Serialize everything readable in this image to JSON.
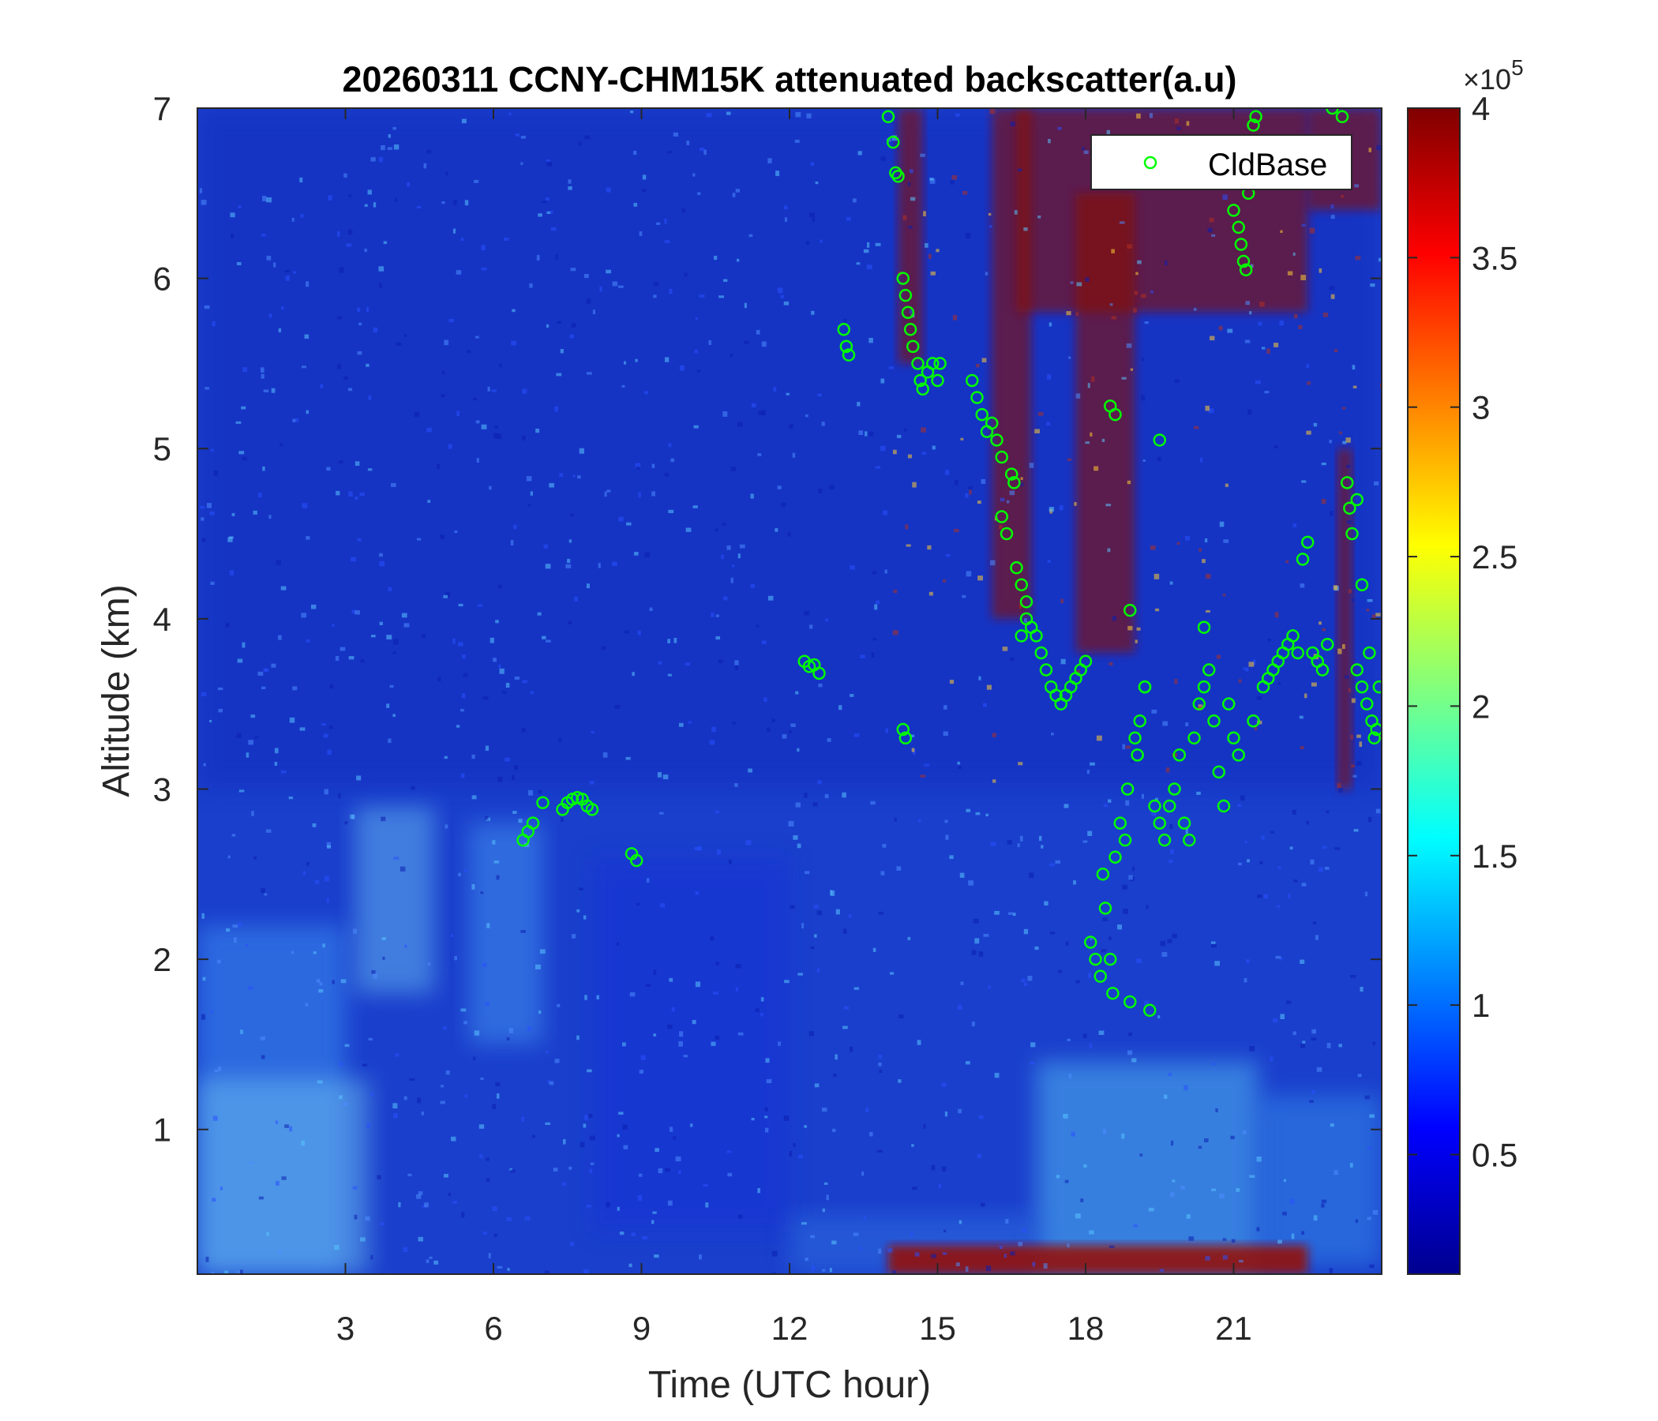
{
  "chart_data": {
    "type": "heatmap",
    "title": "20260311 CCNY-CHM15K attenuated backscatter(a.u)",
    "xlabel": "Time (UTC hour)",
    "ylabel": "Altitude (km)",
    "xlim": [
      0,
      24
    ],
    "ylim": [
      0.15,
      7
    ],
    "xticks": [
      3,
      6,
      9,
      12,
      15,
      18,
      21
    ],
    "yticks": [
      1,
      2,
      3,
      4,
      5,
      6,
      7
    ],
    "colorbar": {
      "colormap": "jet",
      "clim": [
        0.1,
        4
      ],
      "ticks": [
        0.5,
        1,
        1.5,
        2,
        2.5,
        3,
        3.5,
        4
      ],
      "tick_labels": [
        "0.5",
        "1",
        "1.5",
        "2",
        "2.5",
        "3",
        "3.5",
        "4"
      ],
      "exponent_label": "×10",
      "exponent_power": "5"
    },
    "legend": {
      "placement": "top-right",
      "entries": [
        {
          "name": "CldBase",
          "marker": "circle",
          "color": "#00ff00"
        }
      ]
    },
    "cloud_base_series": {
      "name": "CldBase",
      "points": [
        [
          6.6,
          2.7
        ],
        [
          6.7,
          2.75
        ],
        [
          6.8,
          2.8
        ],
        [
          7.0,
          2.92
        ],
        [
          7.4,
          2.88
        ],
        [
          7.5,
          2.92
        ],
        [
          7.6,
          2.94
        ],
        [
          7.7,
          2.95
        ],
        [
          7.8,
          2.94
        ],
        [
          7.9,
          2.9
        ],
        [
          8.0,
          2.88
        ],
        [
          8.8,
          2.62
        ],
        [
          8.9,
          2.58
        ],
        [
          12.3,
          3.75
        ],
        [
          12.4,
          3.72
        ],
        [
          12.5,
          3.73
        ],
        [
          12.6,
          3.68
        ],
        [
          13.1,
          5.7
        ],
        [
          13.15,
          5.6
        ],
        [
          13.2,
          5.55
        ],
        [
          14.0,
          6.95
        ],
        [
          14.1,
          6.8
        ],
        [
          14.15,
          6.62
        ],
        [
          14.2,
          6.6
        ],
        [
          14.3,
          6.0
        ],
        [
          14.35,
          5.9
        ],
        [
          14.4,
          5.8
        ],
        [
          14.45,
          5.7
        ],
        [
          14.5,
          5.6
        ],
        [
          14.6,
          5.5
        ],
        [
          14.65,
          5.4
        ],
        [
          14.7,
          5.35
        ],
        [
          14.8,
          5.45
        ],
        [
          14.9,
          5.5
        ],
        [
          15.0,
          5.4
        ],
        [
          15.05,
          5.5
        ],
        [
          14.3,
          3.35
        ],
        [
          14.35,
          3.3
        ],
        [
          15.7,
          5.4
        ],
        [
          15.8,
          5.3
        ],
        [
          15.9,
          5.2
        ],
        [
          16.0,
          5.1
        ],
        [
          16.1,
          5.15
        ],
        [
          16.2,
          5.05
        ],
        [
          16.3,
          4.95
        ],
        [
          16.5,
          4.85
        ],
        [
          16.55,
          4.8
        ],
        [
          16.3,
          4.6
        ],
        [
          16.4,
          4.5
        ],
        [
          16.6,
          4.3
        ],
        [
          16.7,
          4.2
        ],
        [
          16.8,
          4.1
        ],
        [
          16.7,
          3.9
        ],
        [
          16.8,
          4.0
        ],
        [
          16.9,
          3.95
        ],
        [
          17.0,
          3.9
        ],
        [
          17.1,
          3.8
        ],
        [
          17.2,
          3.7
        ],
        [
          17.3,
          3.6
        ],
        [
          17.4,
          3.55
        ],
        [
          17.5,
          3.5
        ],
        [
          17.6,
          3.55
        ],
        [
          17.7,
          3.6
        ],
        [
          17.8,
          3.65
        ],
        [
          17.9,
          3.7
        ],
        [
          18.0,
          3.75
        ],
        [
          18.1,
          2.1
        ],
        [
          18.2,
          2.0
        ],
        [
          18.3,
          1.9
        ],
        [
          18.35,
          2.5
        ],
        [
          18.4,
          2.3
        ],
        [
          18.5,
          2.0
        ],
        [
          18.55,
          1.8
        ],
        [
          18.6,
          2.6
        ],
        [
          18.7,
          2.8
        ],
        [
          18.8,
          2.7
        ],
        [
          18.85,
          3.0
        ],
        [
          18.9,
          1.75
        ],
        [
          19.0,
          3.3
        ],
        [
          19.05,
          3.2
        ],
        [
          19.1,
          3.4
        ],
        [
          19.2,
          3.6
        ],
        [
          19.3,
          1.7
        ],
        [
          19.4,
          2.9
        ],
        [
          19.5,
          2.8
        ],
        [
          19.6,
          2.7
        ],
        [
          19.7,
          2.9
        ],
        [
          19.8,
          3.0
        ],
        [
          19.9,
          3.2
        ],
        [
          20.0,
          2.8
        ],
        [
          20.1,
          2.7
        ],
        [
          20.2,
          3.3
        ],
        [
          20.3,
          3.5
        ],
        [
          20.4,
          3.6
        ],
        [
          20.5,
          3.7
        ],
        [
          20.6,
          3.4
        ],
        [
          20.7,
          3.1
        ],
        [
          20.8,
          2.9
        ],
        [
          20.9,
          3.5
        ],
        [
          21.0,
          3.3
        ],
        [
          21.1,
          3.2
        ],
        [
          18.5,
          5.25
        ],
        [
          18.6,
          5.2
        ],
        [
          18.9,
          4.05
        ],
        [
          19.2,
          3.6
        ],
        [
          19.5,
          5.05
        ],
        [
          20.4,
          3.95
        ],
        [
          21.4,
          3.4
        ],
        [
          21.0,
          6.4
        ],
        [
          21.1,
          6.3
        ],
        [
          21.15,
          6.2
        ],
        [
          21.2,
          6.1
        ],
        [
          21.25,
          6.05
        ],
        [
          21.3,
          6.5
        ],
        [
          21.4,
          6.9
        ],
        [
          21.45,
          6.95
        ],
        [
          21.6,
          3.6
        ],
        [
          21.7,
          3.65
        ],
        [
          21.8,
          3.7
        ],
        [
          21.9,
          3.75
        ],
        [
          22.0,
          3.8
        ],
        [
          22.1,
          3.85
        ],
        [
          22.2,
          3.9
        ],
        [
          22.3,
          3.8
        ],
        [
          22.4,
          4.35
        ],
        [
          22.5,
          4.45
        ],
        [
          22.6,
          3.8
        ],
        [
          22.7,
          3.75
        ],
        [
          22.8,
          3.7
        ],
        [
          22.9,
          3.85
        ],
        [
          23.0,
          7.0
        ],
        [
          23.2,
          6.95
        ],
        [
          23.3,
          4.8
        ],
        [
          23.35,
          4.65
        ],
        [
          23.4,
          4.5
        ],
        [
          23.5,
          4.7
        ],
        [
          23.6,
          4.2
        ],
        [
          23.5,
          3.7
        ],
        [
          23.6,
          3.6
        ],
        [
          23.7,
          3.5
        ],
        [
          23.75,
          3.8
        ],
        [
          23.8,
          3.4
        ],
        [
          23.85,
          3.3
        ],
        [
          23.9,
          3.35
        ],
        [
          23.95,
          3.6
        ]
      ]
    }
  }
}
